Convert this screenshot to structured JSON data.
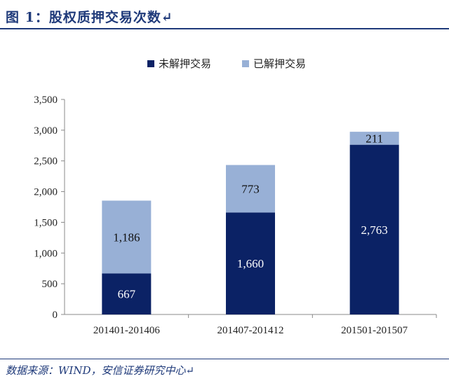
{
  "title": "图 1：股权质押交易次数↵",
  "source": "数据来源：WIND，安信证券研究中心↵",
  "colors": {
    "dark": "#0b2265",
    "light": "#98b0d6",
    "accent": "#1f3a7a"
  },
  "chart_data": {
    "type": "bar",
    "stacked": true,
    "categories": [
      "201401-201406",
      "201407-201412",
      "201501-201507"
    ],
    "series": [
      {
        "name": "未解押交易",
        "values": [
          667,
          1660,
          2763
        ],
        "labels": [
          "667",
          "1,660",
          "2,763"
        ]
      },
      {
        "name": "已解押交易",
        "values": [
          1186,
          773,
          211
        ],
        "labels": [
          "1,186",
          "773",
          "211"
        ]
      }
    ],
    "ylim": [
      0,
      3500
    ],
    "yticks": [
      "0",
      "500",
      "1,000",
      "1,500",
      "2,000",
      "2,500",
      "3,000",
      "3,500"
    ],
    "legend_position": "top-center",
    "grid": false
  }
}
